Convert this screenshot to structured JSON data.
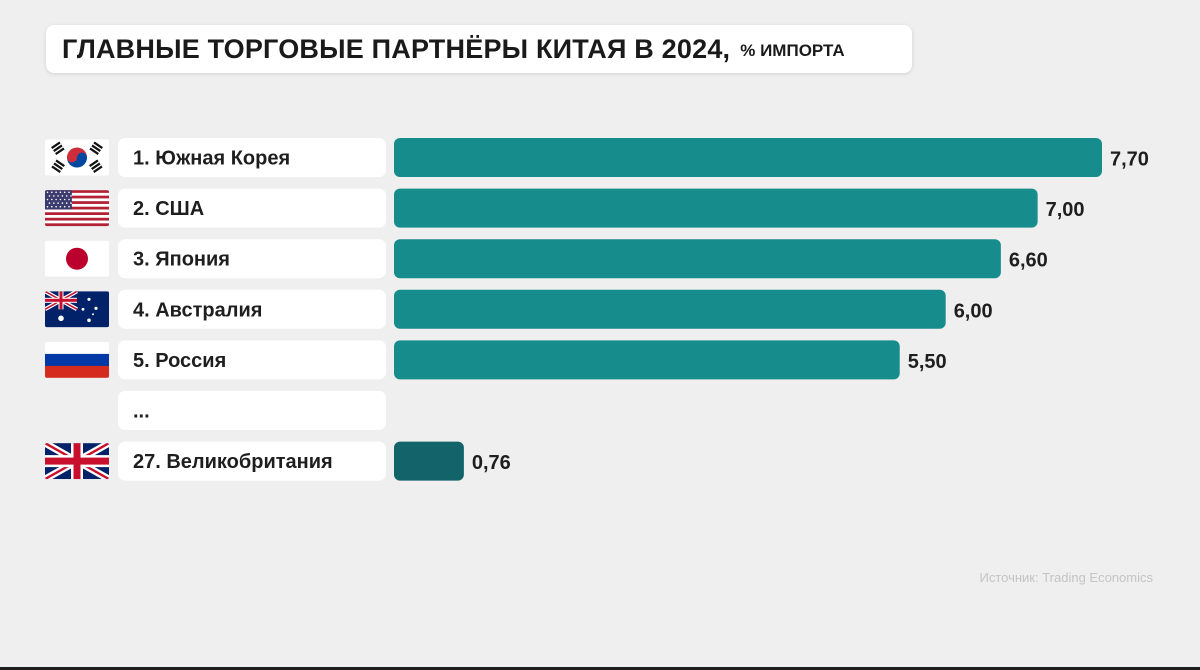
{
  "title": "ГЛАВНЫЕ ТОРГОВЫЕ ПАРТНЁРЫ КИТАЯ В 2024,",
  "unit": "% ИМПОРТА",
  "source": "Источник: Trading Economics",
  "colors": {
    "bar": "#178c8c",
    "bar_highlight": "#12646a",
    "label_box": "#ffffff",
    "background": "#efefef"
  },
  "chart_data": {
    "type": "bar",
    "orientation": "horizontal",
    "title": "ГЛАВНЫЕ ТОРГОВЫЕ ПАРТНЁРЫ КИТАЯ В 2024, % ИМПОРТА",
    "xlabel": "",
    "ylabel": "",
    "xlim": [
      0,
      7.7
    ],
    "grid": false,
    "legend": "none",
    "rows": [
      {
        "label": "1. Южная Корея",
        "value": 7.7,
        "value_label": "7,70",
        "flag": "south-korea-flag"
      },
      {
        "label": "2. США",
        "value": 7.0,
        "value_label": "7,00",
        "flag": "usa-flag"
      },
      {
        "label": "3. Япония",
        "value": 6.6,
        "value_label": "6,60",
        "flag": "japan-flag"
      },
      {
        "label": "4. Австралия",
        "value": 6.0,
        "value_label": "6,00",
        "flag": "australia-flag"
      },
      {
        "label": "5. Россия",
        "value": 5.5,
        "value_label": "5,50",
        "flag": "russia-flag"
      },
      {
        "label": "...",
        "value": null,
        "value_label": "",
        "flag": ""
      },
      {
        "label": "27. Великобритания",
        "value": 0.76,
        "value_label": "0,76",
        "flag": "uk-flag",
        "highlight": true
      }
    ]
  }
}
